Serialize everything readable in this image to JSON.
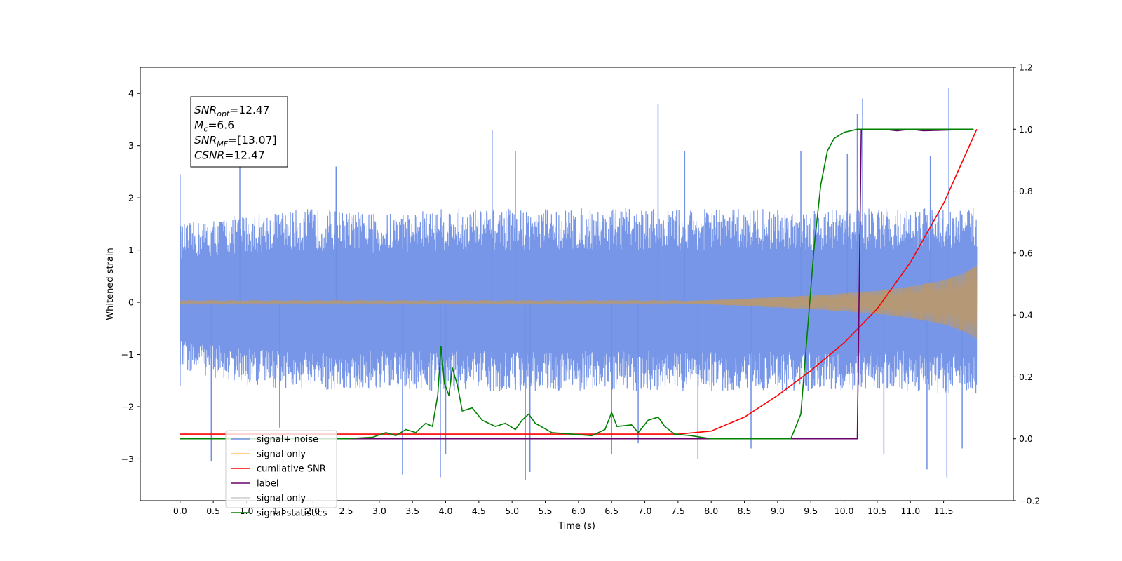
{
  "chart_data": {
    "type": "line",
    "title": "",
    "xlabel": "Time (s)",
    "ylabel": "Whitened strain",
    "xlim": [
      -0.6,
      12.55
    ],
    "ylim_left": [
      -3.8,
      4.5
    ],
    "ylim_right": [
      -0.2,
      1.2
    ],
    "x_ticks": [
      "0.0",
      "0.5",
      "1.0",
      "1.5",
      "2.0",
      "2.5",
      "3.0",
      "3.5",
      "4.0",
      "4.5",
      "5.0",
      "5.5",
      "6.0",
      "6.5",
      "7.0",
      "7.5",
      "8.0",
      "8.5",
      "9.0",
      "9.5",
      "10.0",
      "10.5",
      "11.0",
      "11.5"
    ],
    "y_ticks_left": [
      "−3",
      "−2",
      "−1",
      "0",
      "1",
      "2",
      "3",
      "4"
    ],
    "y_ticks_right": [
      "−0.2",
      "0.0",
      "0.2",
      "0.4",
      "0.6",
      "0.8",
      "1.0",
      "1.2"
    ],
    "grid": false,
    "legend_position": "bottom-left",
    "info_box": {
      "lines": [
        {
          "sym": "SNR",
          "sub": "opt",
          "value": "=12.47"
        },
        {
          "sym": "M",
          "sub": "c",
          "value": "=6.6"
        },
        {
          "sym": "SNR",
          "sub": "MF",
          "value": "=[13.07]"
        },
        {
          "sym": "CSNR",
          "sub": "",
          "value": "=12.47"
        }
      ]
    },
    "series": [
      {
        "name": "signal+ noise",
        "color": "#7090e6",
        "axis": "left",
        "band_upper": [
          [
            0.0,
            1.5
          ],
          [
            1.0,
            1.7
          ],
          [
            2.0,
            1.8
          ],
          [
            3.0,
            1.7
          ],
          [
            4.0,
            1.8
          ],
          [
            5.0,
            1.8
          ],
          [
            6.0,
            1.8
          ],
          [
            7.0,
            1.8
          ],
          [
            8.0,
            1.8
          ],
          [
            9.0,
            1.8
          ],
          [
            10.0,
            1.8
          ],
          [
            11.0,
            1.8
          ],
          [
            12.0,
            1.8
          ]
        ],
        "band_lower": [
          [
            0.0,
            -1.3
          ],
          [
            1.0,
            -1.6
          ],
          [
            2.0,
            -1.7
          ],
          [
            3.0,
            -1.7
          ],
          [
            4.0,
            -1.7
          ],
          [
            5.0,
            -1.7
          ],
          [
            6.0,
            -1.7
          ],
          [
            7.0,
            -1.7
          ],
          [
            8.0,
            -1.7
          ],
          [
            9.0,
            -1.7
          ],
          [
            10.0,
            -1.7
          ],
          [
            11.0,
            -1.7
          ],
          [
            12.0,
            -1.8
          ]
        ],
        "spikes": [
          [
            0.0,
            2.45
          ],
          [
            0.0,
            -1.6
          ],
          [
            0.47,
            -3.05
          ],
          [
            0.9,
            2.8
          ],
          [
            1.5,
            -2.4
          ],
          [
            2.35,
            2.6
          ],
          [
            3.35,
            -3.3
          ],
          [
            3.92,
            -3.35
          ],
          [
            4.0,
            -2.9
          ],
          [
            4.7,
            3.3
          ],
          [
            5.05,
            2.9
          ],
          [
            5.2,
            -3.4
          ],
          [
            5.27,
            -3.25
          ],
          [
            6.5,
            -2.9
          ],
          [
            6.9,
            -2.7
          ],
          [
            7.2,
            3.8
          ],
          [
            7.6,
            2.9
          ],
          [
            7.8,
            -3.0
          ],
          [
            8.6,
            -2.8
          ],
          [
            9.35,
            2.9
          ],
          [
            10.05,
            2.85
          ],
          [
            10.2,
            3.6
          ],
          [
            10.28,
            3.9
          ],
          [
            10.6,
            -2.9
          ],
          [
            11.25,
            -3.2
          ],
          [
            11.3,
            2.8
          ],
          [
            11.55,
            -3.35
          ],
          [
            11.58,
            4.1
          ],
          [
            11.78,
            -2.8
          ]
        ]
      },
      {
        "name": "signal only",
        "color": "#ffbf60",
        "axis": "left",
        "envelope": [
          [
            0.0,
            0.02
          ],
          [
            7.5,
            0.02
          ],
          [
            8.0,
            0.04
          ],
          [
            8.5,
            0.07
          ],
          [
            9.0,
            0.1
          ],
          [
            9.5,
            0.13
          ],
          [
            10.0,
            0.17
          ],
          [
            10.5,
            0.22
          ],
          [
            11.0,
            0.3
          ],
          [
            11.5,
            0.42
          ],
          [
            11.8,
            0.55
          ],
          [
            12.0,
            0.7
          ]
        ]
      },
      {
        "name": "cumilative SNR",
        "color": "#ff0000",
        "axis": "right",
        "points": [
          [
            0.0,
            0.015
          ],
          [
            7.5,
            0.015
          ],
          [
            8.0,
            0.025
          ],
          [
            8.5,
            0.07
          ],
          [
            9.0,
            0.14
          ],
          [
            9.5,
            0.22
          ],
          [
            10.0,
            0.31
          ],
          [
            10.5,
            0.42
          ],
          [
            11.0,
            0.57
          ],
          [
            11.5,
            0.76
          ],
          [
            12.0,
            1.0
          ]
        ]
      },
      {
        "name": "label",
        "color": "#6a006a",
        "axis": "right",
        "points": [
          [
            0.0,
            0.0
          ],
          [
            10.2,
            0.0
          ],
          [
            10.26,
            1.0
          ],
          [
            10.6,
            1.0
          ],
          [
            10.8,
            0.995
          ],
          [
            11.0,
            1.0
          ],
          [
            11.2,
            0.995
          ],
          [
            11.95,
            1.0
          ]
        ]
      },
      {
        "name": "signal only",
        "color": "#ffbf60",
        "axis": "right",
        "points": []
      },
      {
        "name": "signal statistics",
        "color": "#008000",
        "axis": "right",
        "points": [
          [
            0.0,
            0.0
          ],
          [
            2.5,
            0.0
          ],
          [
            2.9,
            0.005
          ],
          [
            3.1,
            0.02
          ],
          [
            3.25,
            0.01
          ],
          [
            3.4,
            0.03
          ],
          [
            3.55,
            0.02
          ],
          [
            3.7,
            0.05
          ],
          [
            3.8,
            0.04
          ],
          [
            3.88,
            0.14
          ],
          [
            3.93,
            0.3
          ],
          [
            3.98,
            0.18
          ],
          [
            4.05,
            0.14
          ],
          [
            4.1,
            0.23
          ],
          [
            4.18,
            0.17
          ],
          [
            4.25,
            0.09
          ],
          [
            4.4,
            0.1
          ],
          [
            4.55,
            0.06
          ],
          [
            4.75,
            0.04
          ],
          [
            4.9,
            0.05
          ],
          [
            5.05,
            0.03
          ],
          [
            5.15,
            0.06
          ],
          [
            5.25,
            0.08
          ],
          [
            5.35,
            0.05
          ],
          [
            5.6,
            0.02
          ],
          [
            5.9,
            0.015
          ],
          [
            6.2,
            0.01
          ],
          [
            6.4,
            0.03
          ],
          [
            6.5,
            0.085
          ],
          [
            6.58,
            0.04
          ],
          [
            6.8,
            0.045
          ],
          [
            6.9,
            0.02
          ],
          [
            7.05,
            0.06
          ],
          [
            7.2,
            0.07
          ],
          [
            7.3,
            0.04
          ],
          [
            7.45,
            0.015
          ],
          [
            7.7,
            0.01
          ],
          [
            8.0,
            0.0
          ],
          [
            9.2,
            0.0
          ],
          [
            9.35,
            0.08
          ],
          [
            9.45,
            0.35
          ],
          [
            9.55,
            0.62
          ],
          [
            9.65,
            0.82
          ],
          [
            9.75,
            0.93
          ],
          [
            9.85,
            0.97
          ],
          [
            10.0,
            0.99
          ],
          [
            10.2,
            1.0
          ],
          [
            11.95,
            1.0
          ]
        ]
      }
    ],
    "legend_entries": [
      {
        "label": "signal+ noise",
        "color": "#7090e6"
      },
      {
        "label": "signal only",
        "color": "#ffbf60"
      },
      {
        "label": "cumilative SNR",
        "color": "#ff0000"
      },
      {
        "label": "label",
        "color": "#6a006a"
      },
      {
        "label": "signal only",
        "color": "#cccccc"
      },
      {
        "label": "signal statistics",
        "color": "#008000"
      }
    ]
  }
}
